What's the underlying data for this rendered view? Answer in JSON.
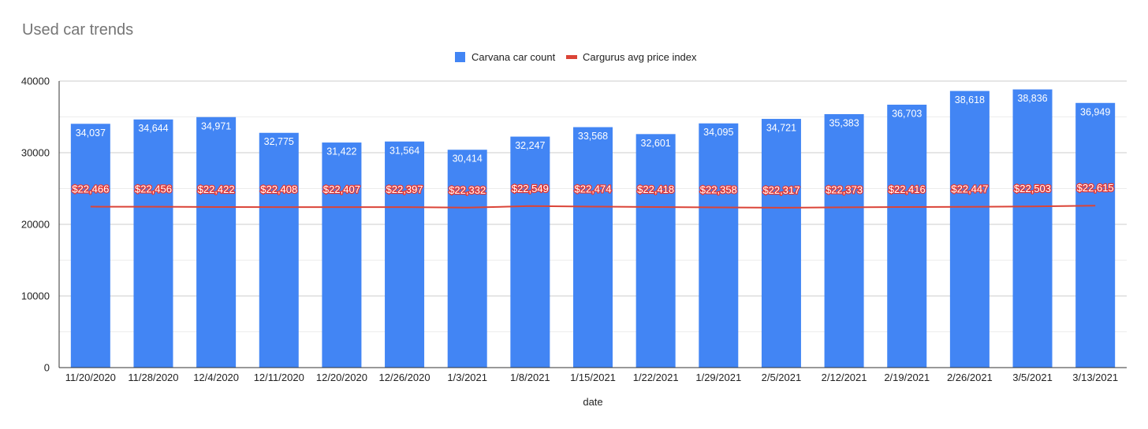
{
  "chart_data": {
    "type": "bar",
    "title": "Used car trends",
    "xlabel": "date",
    "ylabel": "",
    "ylim": [
      0,
      40000
    ],
    "yticks": [
      0,
      10000,
      20000,
      30000,
      40000
    ],
    "grid": true,
    "legend_position": "top-center",
    "categories": [
      "11/20/2020",
      "11/28/2020",
      "12/4/2020",
      "12/11/2020",
      "12/20/2020",
      "12/26/2020",
      "1/3/2021",
      "1/8/2021",
      "1/15/2021",
      "1/22/2021",
      "1/29/2021",
      "2/5/2021",
      "2/12/2021",
      "2/19/2021",
      "2/26/2021",
      "3/5/2021",
      "3/13/2021"
    ],
    "series": [
      {
        "name": "Carvana car count",
        "type": "bar",
        "color": "#4285f4",
        "values": [
          34037,
          34644,
          34971,
          32775,
          31422,
          31564,
          30414,
          32247,
          33568,
          32601,
          34095,
          34721,
          35383,
          36703,
          38618,
          38836,
          36949
        ],
        "labels": [
          "34,037",
          "34,644",
          "34,971",
          "32,775",
          "31,422",
          "31,564",
          "30,414",
          "32,247",
          "33,568",
          "32,601",
          "34,095",
          "34,721",
          "35,383",
          "36,703",
          "38,618",
          "38,836",
          "36,949"
        ]
      },
      {
        "name": "Cargurus avg price index",
        "type": "line",
        "color": "#db4437",
        "values": [
          22466,
          22456,
          22422,
          22408,
          22407,
          22397,
          22332,
          22549,
          22474,
          22418,
          22358,
          22317,
          22373,
          22416,
          22447,
          22503,
          22615
        ],
        "labels": [
          "$22,466",
          "$22,456",
          "$22,422",
          "$22,408",
          "$22,407",
          "$22,397",
          "$22,332",
          "$22,549",
          "$22,474",
          "$22,418",
          "$22,358",
          "$22,317",
          "$22,373",
          "$22,416",
          "$22,447",
          "$22,503",
          "$22,615"
        ]
      }
    ]
  }
}
